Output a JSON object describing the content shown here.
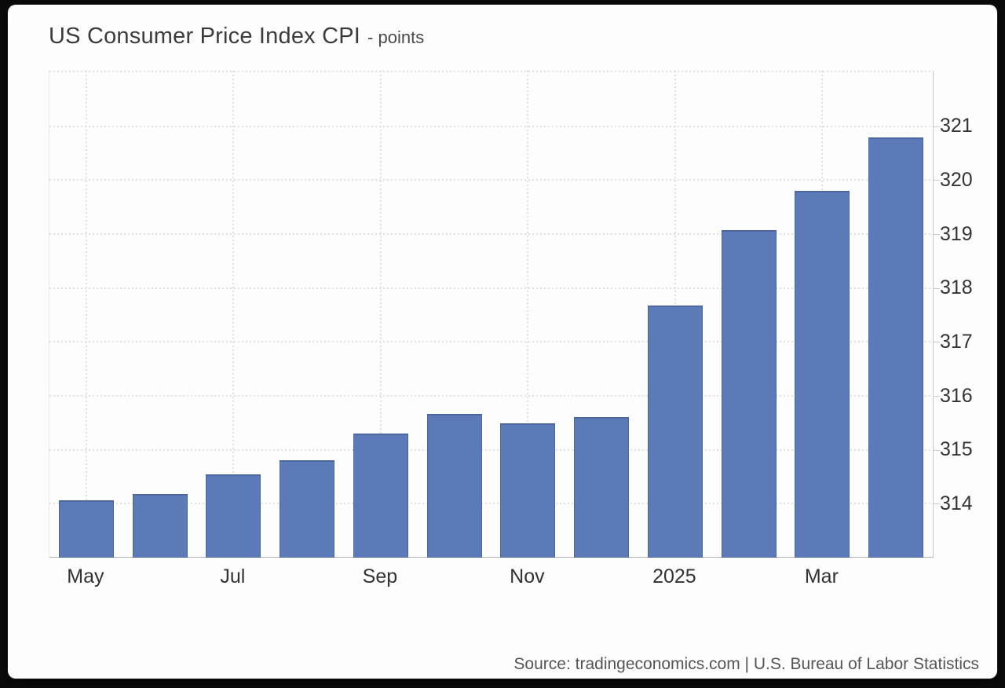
{
  "title": {
    "main": "US Consumer Price Index CPI",
    "units": "- points"
  },
  "source": "Source: tradingeconomics.com | U.S. Bureau of Labor Statistics",
  "colors": {
    "bar": "#5b7ab7",
    "bar_border": "#4a67a0",
    "grid": "#e0e0e0",
    "axis": "#c9c9c9",
    "axis_bottom": "#b2b2b2",
    "label_text": "#333333",
    "title_text": "#3c3c3c",
    "source_text": "#555555",
    "card_background": "#fdfdfd",
    "page_background": "#0b0b0b"
  },
  "chart_data": {
    "type": "bar",
    "title": "US Consumer Price Index CPI",
    "ylabel": "points",
    "x": [
      "May 2024",
      "Jun 2024",
      "Jul 2024",
      "Aug 2024",
      "Sep 2024",
      "Oct 2024",
      "Nov 2024",
      "Dec 2024",
      "Jan 2025",
      "Feb 2025",
      "Mar 2025",
      "Apr 2025"
    ],
    "values": [
      314.07,
      314.18,
      314.54,
      314.8,
      315.3,
      315.66,
      315.49,
      315.61,
      317.67,
      319.08,
      319.8,
      320.8
    ],
    "x_tick_labels": [
      {
        "index": 0,
        "label": "May"
      },
      {
        "index": 2,
        "label": "Jul"
      },
      {
        "index": 4,
        "label": "Sep"
      },
      {
        "index": 6,
        "label": "Nov"
      },
      {
        "index": 8,
        "label": "2025"
      },
      {
        "index": 10,
        "label": "Mar"
      }
    ],
    "y_ticks": [
      314,
      315,
      316,
      317,
      318,
      319,
      320,
      321
    ],
    "ylim": [
      313.0,
      322.03
    ],
    "grid": true,
    "legend": false,
    "y_axis_side": "right"
  }
}
